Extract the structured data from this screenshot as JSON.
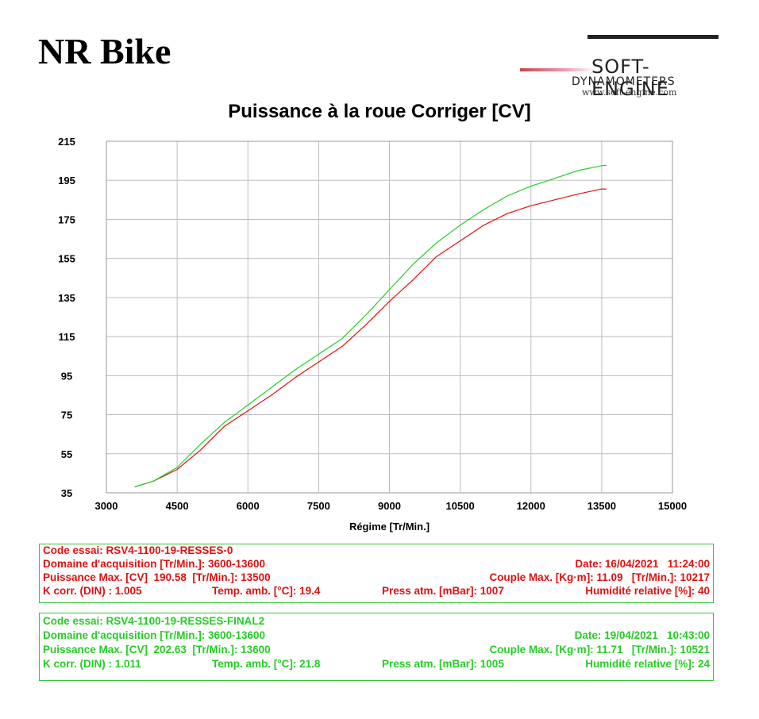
{
  "brand": "NR Bike",
  "logo": {
    "name": "SOFT-ENGINE",
    "sub": "DYNAMOMETERS",
    "url": "www.soft-engine.com"
  },
  "colors": {
    "run1": "#e01010",
    "run2": "#25cc25",
    "grid": "#bdbdbd"
  },
  "chart_data": {
    "type": "line",
    "title": "Puissance à la roue Corriger [CV]",
    "xlabel": "Régime [Tr/Min.]",
    "ylabel": "",
    "xlim": [
      3000,
      15000
    ],
    "ylim": [
      35,
      215
    ],
    "xticks": [
      3000,
      4500,
      6000,
      7500,
      9000,
      10500,
      12000,
      13500,
      15000
    ],
    "yticks": [
      35,
      55,
      75,
      95,
      115,
      135,
      155,
      175,
      195,
      215
    ],
    "grid": true,
    "series": [
      {
        "color": "#e01010",
        "x": [
          3600,
          4000,
          4500,
          5000,
          5500,
          6000,
          6500,
          7000,
          7500,
          8000,
          8500,
          9000,
          9500,
          10000,
          10500,
          11000,
          11500,
          12000,
          12500,
          13000,
          13500,
          13600
        ],
        "y": [
          38,
          41,
          47,
          57,
          69,
          77,
          85,
          94,
          102,
          110,
          121,
          133,
          144,
          156,
          164,
          172,
          178,
          182,
          185,
          188,
          190.58,
          190.5
        ]
      },
      {
        "color": "#25cc25",
        "x": [
          3600,
          4000,
          4500,
          5000,
          5500,
          6000,
          6500,
          7000,
          7500,
          8000,
          8500,
          9000,
          9500,
          10000,
          10500,
          11000,
          11500,
          12000,
          12500,
          13000,
          13500,
          13600
        ],
        "y": [
          38,
          41,
          48,
          60,
          71,
          80,
          89,
          98,
          106,
          114,
          126,
          139,
          152,
          163,
          172,
          180,
          187,
          192,
          196,
          200,
          202.5,
          202.63
        ]
      }
    ]
  },
  "run1": {
    "line1": {
      "code": "Code essai: RSV4-1100-19-RESSES-0"
    },
    "line2": {
      "domain": "Domaine d'acquisition [Tr/Min.]: 3600-13600",
      "date": "Date: 16/04/2021   11:24:00"
    },
    "line3": {
      "power": "Puissance Max. [CV]  190.58  [Tr/Min.]: 13500",
      "torque": "Couple Max. [Kg·m]: 11.09   [Tr/Min.]: 10217"
    },
    "line4": {
      "k": "K corr. (DIN) : 1.005",
      "temp": "Temp. amb. [°C]: 19.4",
      "press": "Press atm. [mBar]: 1007",
      "hum": "Humidité relative [%]: 40"
    }
  },
  "run2": {
    "line1": {
      "code": "Code essai: RSV4-1100-19-RESSES-FINAL2"
    },
    "line2": {
      "domain": "Domaine d'acquisition [Tr/Min.]: 3600-13600",
      "date": "Date: 19/04/2021   10:43:00"
    },
    "line3": {
      "power": "Puissance Max. [CV]  202.63  [Tr/Min.]: 13600",
      "torque": "Couple Max. [Kg·m]: 11.71   [Tr/Min.]: 10521"
    },
    "line4": {
      "k": "K corr. (DIN) : 1.011",
      "temp": "Temp. amb. [°C]: 21.8",
      "press": "Press atm. [mBar]: 1005",
      "hum": "Humidité relative [%]: 24"
    }
  }
}
